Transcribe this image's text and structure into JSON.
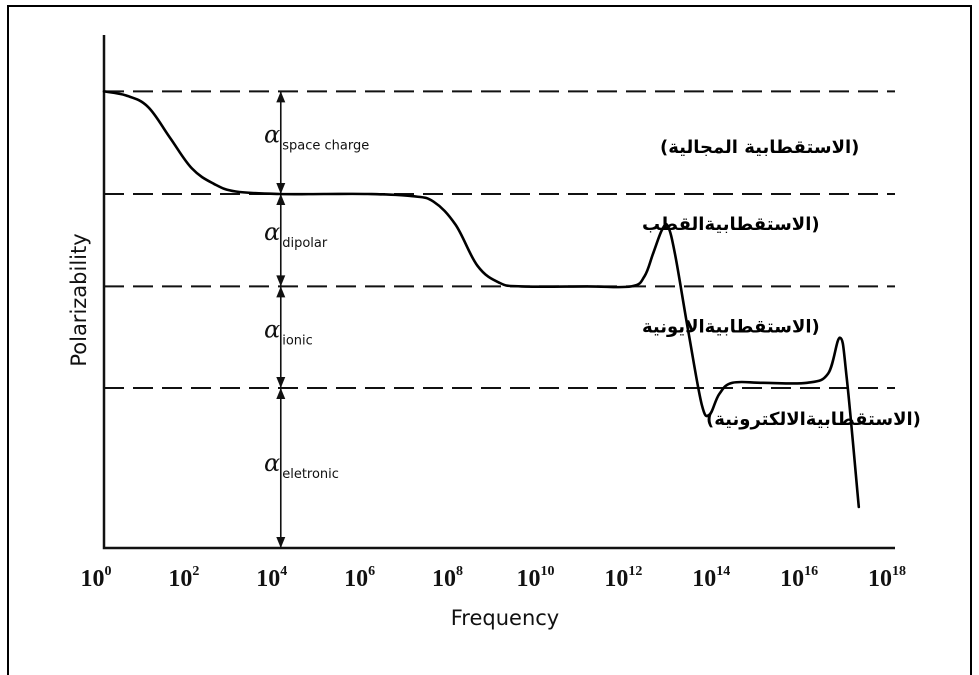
{
  "chart_data": {
    "type": "line",
    "xlabel": "Frequency",
    "ylabel": "Polarizability",
    "x_scale": "log10",
    "x_ticks": [
      {
        "base": "10",
        "exp": "0",
        "value": 1
      },
      {
        "base": "10",
        "exp": "2",
        "value": 100
      },
      {
        "base": "10",
        "exp": "4",
        "value": 10000
      },
      {
        "base": "10",
        "exp": "6",
        "value": 1000000
      },
      {
        "base": "10",
        "exp": "8",
        "value": 100000000
      },
      {
        "base": "10",
        "exp": "10",
        "value": 10000000000
      },
      {
        "base": "10",
        "exp": "12",
        "value": 1000000000000
      },
      {
        "base": "10",
        "exp": "14",
        "value": 100000000000000
      },
      {
        "base": "10",
        "exp": "16",
        "value": 10000000000000000
      },
      {
        "base": "10",
        "exp": "18",
        "value": 1000000000000000000
      }
    ],
    "xlim": [
      1,
      1000000000000000000
    ],
    "ylim": [
      0,
      1
    ],
    "levels": [
      0.312,
      0.51,
      0.69,
      0.89
    ],
    "series": [
      {
        "points": [
          [
            1,
            0.89
          ],
          [
            3.2,
            0.882
          ],
          [
            10,
            0.86
          ],
          [
            31.6,
            0.8
          ],
          [
            100,
            0.74
          ],
          [
            316,
            0.71
          ],
          [
            1000,
            0.695
          ],
          [
            10000,
            0.69
          ],
          [
            100000,
            0.69
          ],
          [
            1000000,
            0.69
          ],
          [
            10000000,
            0.686
          ],
          [
            31600000,
            0.675
          ],
          [
            100000000,
            0.63
          ],
          [
            316000000,
            0.55
          ],
          [
            1000000000,
            0.517
          ],
          [
            3160000000,
            0.51
          ],
          [
            100000000000,
            0.51
          ],
          [
            1000000000000,
            0.51
          ],
          [
            2000000000000,
            0.53
          ],
          [
            3160000000000,
            0.575
          ],
          [
            5000000000000,
            0.62
          ],
          [
            6800000000000,
            0.627
          ],
          [
            10000000000000,
            0.57
          ],
          [
            20000000000000,
            0.42
          ],
          [
            40000000000000,
            0.28
          ],
          [
            60000000000000,
            0.26
          ],
          [
            100000000000000,
            0.3
          ],
          [
            200000000000000,
            0.322
          ],
          [
            1000000000000000,
            0.322
          ],
          [
            10000000000000000,
            0.322
          ],
          [
            30000000000000000,
            0.34
          ],
          [
            56000000000000000,
            0.41
          ],
          [
            80000000000000000,
            0.33
          ],
          [
            150000000000000000,
            0.08
          ]
        ]
      }
    ],
    "regions": [
      {
        "symbol": "α",
        "sub": "space charge",
        "arabic": "(الاستقطابية المجالية)",
        "between": [
          0.69,
          0.89
        ]
      },
      {
        "symbol": "α",
        "sub": "dipolar",
        "arabic": "(الاستقطابيةالقطب",
        "between": [
          0.51,
          0.69
        ]
      },
      {
        "symbol": "α",
        "sub": "ionic",
        "arabic": "(الاستقطابيةالايونية",
        "between": [
          0.312,
          0.51
        ]
      },
      {
        "symbol": "α",
        "sub": "eletronic",
        "arabic": "(الاستقطابيةالالكترونية)",
        "between": [
          0,
          0.312
        ]
      }
    ]
  }
}
